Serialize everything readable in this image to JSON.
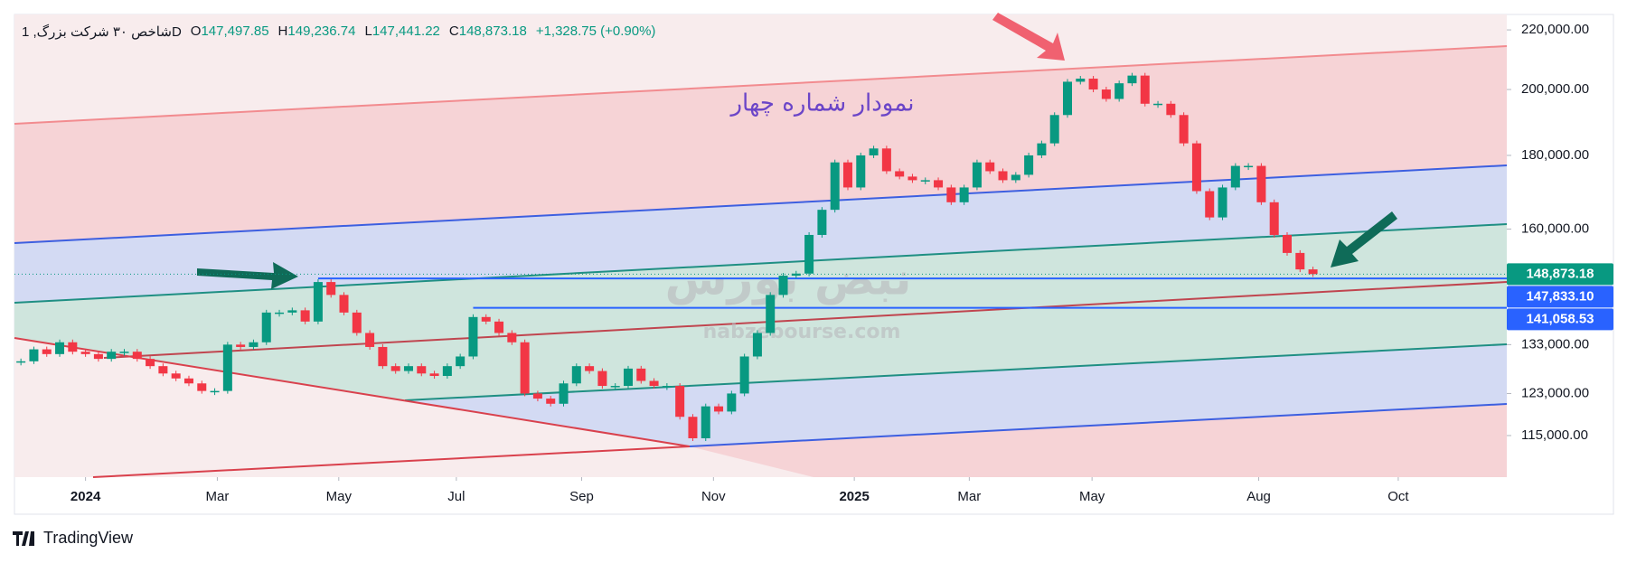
{
  "chart_data": {
    "type": "candlestick",
    "header": {
      "symbol": "شاخص ۳۰ شرکت بزرگ, 1D",
      "ohlc": [
        {
          "label": "O",
          "value": "147,497.85"
        },
        {
          "label": "H",
          "value": "149,236.74"
        },
        {
          "label": "L",
          "value": "147,441.22"
        },
        {
          "label": "C",
          "value": "148,873.18"
        }
      ],
      "change": "+1,328.75 (+0.90%)"
    },
    "annotation": "نمودار شماره چهار",
    "watermark": [
      "نبض بورس",
      "nabzebourse.com"
    ],
    "branding": "TradingView",
    "values": [
      129500,
      132000,
      131000,
      133500,
      131500,
      131000,
      130000,
      131500,
      131500,
      130000,
      128500,
      127000,
      126000,
      125000,
      123500,
      123500,
      133000,
      132500,
      133500,
      140000,
      140000,
      140500,
      138000,
      147000,
      144000,
      140000,
      135500,
      132500,
      128500,
      127500,
      128500,
      127000,
      126500,
      128500,
      130500,
      139000,
      138000,
      135500,
      133500,
      123000,
      122000,
      121000,
      125000,
      128500,
      127500,
      124500,
      124500,
      128000,
      125500,
      124500,
      124500,
      118500,
      114500,
      120500,
      119500,
      123000,
      130500,
      135500,
      144000,
      148500,
      149000,
      158500,
      165000,
      178000,
      171000,
      180000,
      182000,
      175500,
      174000,
      173000,
      173000,
      171000,
      167000,
      171000,
      178000,
      175500,
      173000,
      174500,
      180000,
      183500,
      192000,
      202500,
      203500,
      200000,
      197000,
      202000,
      204500,
      195500,
      195500,
      192000,
      183500,
      170000,
      163000,
      171000,
      177000,
      177000,
      167000,
      158500,
      154000,
      150000,
      148873.18
    ],
    "last_price_label": "148,873.18",
    "up_color": "#089981",
    "down_color": "#f23645",
    "price_lines": [
      {
        "value": 147833.1,
        "label": "147,833.10",
        "color": "#2962ff"
      },
      {
        "value": 141058.53,
        "label": "141,058.53",
        "color": "#2962ff"
      }
    ],
    "log_scale": true,
    "ylim": [
      107600,
      225500
    ],
    "yticks": [
      {
        "value": 220000,
        "label": "220,000.00"
      },
      {
        "value": 200000,
        "label": "200,000.00"
      },
      {
        "value": 180000,
        "label": "180,000.00"
      },
      {
        "value": 160000,
        "label": "160,000.00"
      },
      {
        "value": 133000,
        "label": "133,000.00"
      },
      {
        "value": 123000,
        "label": "123,000.00"
      },
      {
        "value": 115000,
        "label": "115,000.00"
      }
    ],
    "xlim": [
      -0.5,
      115
    ],
    "xticks": [
      {
        "value": 5,
        "label": "2024"
      },
      {
        "value": 15.2,
        "label": "Mar"
      },
      {
        "value": 24.6,
        "label": "May"
      },
      {
        "value": 33.7,
        "label": "Jul"
      },
      {
        "value": 43.4,
        "label": "Sep"
      },
      {
        "value": 53.6,
        "label": "Nov"
      },
      {
        "value": 64.5,
        "label": "2025"
      },
      {
        "value": 73.4,
        "label": "Mar"
      },
      {
        "value": 82.9,
        "label": "May"
      },
      {
        "value": 95.8,
        "label": "Aug"
      },
      {
        "value": 106.6,
        "label": "Oct"
      }
    ]
  }
}
